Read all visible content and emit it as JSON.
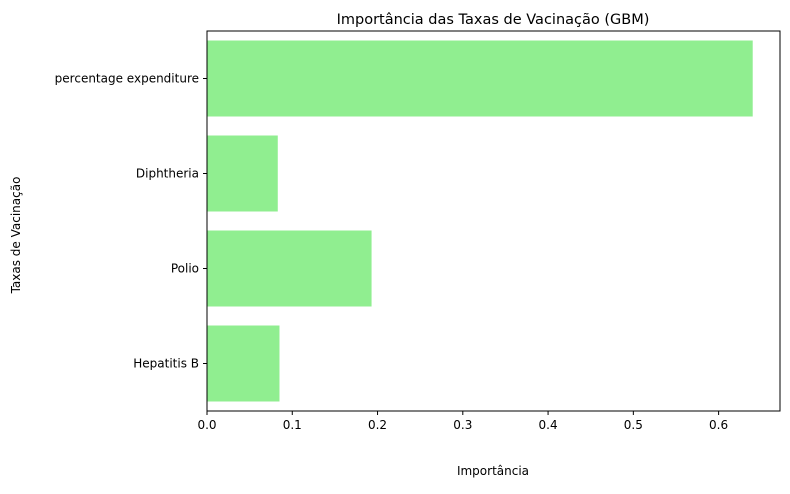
{
  "chart_data": {
    "type": "bar",
    "orientation": "horizontal",
    "title": "Importância das Taxas de Vacinação (GBM)",
    "xlabel": "Importância",
    "ylabel": "Taxas de Vacinação",
    "categories": [
      "Hepatitis B",
      "Polio",
      "Diphtheria",
      "percentage expenditure"
    ],
    "values": [
      0.085,
      0.193,
      0.083,
      0.64
    ],
    "xlim": [
      0,
      0.672
    ],
    "xticks": [
      0.0,
      0.1,
      0.2,
      0.3,
      0.4,
      0.5,
      0.6
    ],
    "xtick_labels": [
      "0.0",
      "0.1",
      "0.2",
      "0.3",
      "0.4",
      "0.5",
      "0.6"
    ],
    "bar_color": "#90ee90",
    "grid": false
  }
}
